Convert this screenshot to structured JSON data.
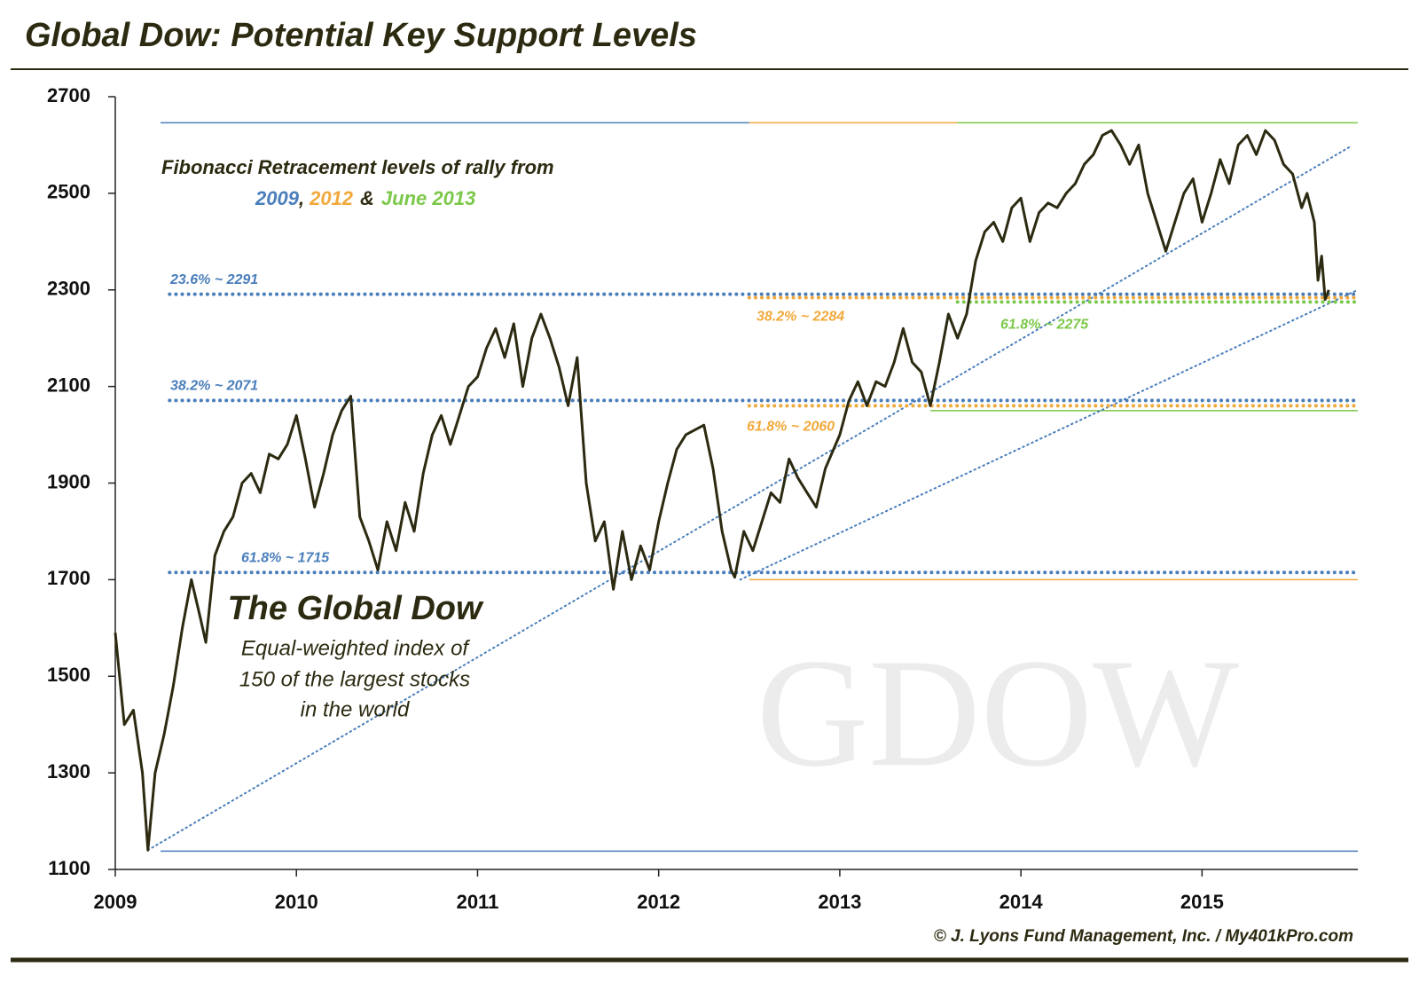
{
  "chart_data": {
    "type": "line",
    "title": "Global Dow: Potential Key Support Levels",
    "color": "#2c2a10",
    "xlim": [
      2009,
      2015.86
    ],
    "ylim": [
      1100,
      2700
    ],
    "xticks": [
      2009,
      2010,
      2011,
      2012,
      2013,
      2014,
      2015
    ],
    "yticks": [
      1100,
      1300,
      1500,
      1700,
      1900,
      2100,
      2300,
      2500,
      2700
    ],
    "x": [
      2009.0,
      2009.05,
      2009.1,
      2009.15,
      2009.18,
      2009.22,
      2009.27,
      2009.32,
      2009.37,
      2009.42,
      2009.47,
      2009.5,
      2009.55,
      2009.6,
      2009.65,
      2009.7,
      2009.75,
      2009.8,
      2009.85,
      2009.9,
      2009.95,
      2010.0,
      2010.05,
      2010.1,
      2010.15,
      2010.2,
      2010.25,
      2010.3,
      2010.35,
      2010.4,
      2010.45,
      2010.5,
      2010.55,
      2010.6,
      2010.65,
      2010.7,
      2010.75,
      2010.8,
      2010.85,
      2010.9,
      2010.95,
      2011.0,
      2011.05,
      2011.1,
      2011.15,
      2011.2,
      2011.25,
      2011.3,
      2011.35,
      2011.4,
      2011.45,
      2011.5,
      2011.55,
      2011.6,
      2011.65,
      2011.7,
      2011.75,
      2011.8,
      2011.85,
      2011.9,
      2011.95,
      2012.0,
      2012.05,
      2012.1,
      2012.15,
      2012.2,
      2012.25,
      2012.3,
      2012.35,
      2012.4,
      2012.42,
      2012.47,
      2012.52,
      2012.57,
      2012.62,
      2012.67,
      2012.72,
      2012.77,
      2012.82,
      2012.87,
      2012.92,
      2013.0,
      2013.05,
      2013.1,
      2013.15,
      2013.2,
      2013.25,
      2013.3,
      2013.35,
      2013.4,
      2013.45,
      2013.5,
      2013.55,
      2013.6,
      2013.65,
      2013.7,
      2013.75,
      2013.8,
      2013.85,
      2013.9,
      2013.95,
      2014.0,
      2014.05,
      2014.1,
      2014.15,
      2014.2,
      2014.25,
      2014.3,
      2014.35,
      2014.4,
      2014.45,
      2014.5,
      2014.55,
      2014.6,
      2014.65,
      2014.7,
      2014.75,
      2014.8,
      2014.85,
      2014.9,
      2014.95,
      2015.0,
      2015.05,
      2015.1,
      2015.15,
      2015.2,
      2015.25,
      2015.3,
      2015.35,
      2015.4,
      2015.45,
      2015.5,
      2015.55,
      2015.58,
      2015.62,
      2015.64,
      2015.66,
      2015.68,
      2015.7
    ],
    "values": [
      1590,
      1400,
      1430,
      1300,
      1140,
      1300,
      1380,
      1480,
      1600,
      1700,
      1620,
      1570,
      1750,
      1800,
      1830,
      1900,
      1920,
      1880,
      1960,
      1950,
      1980,
      2040,
      1950,
      1850,
      1920,
      2000,
      2050,
      2080,
      1830,
      1780,
      1720,
      1820,
      1760,
      1860,
      1800,
      1920,
      2000,
      2040,
      1980,
      2040,
      2100,
      2120,
      2180,
      2220,
      2160,
      2230,
      2100,
      2200,
      2250,
      2200,
      2140,
      2060,
      2160,
      1900,
      1780,
      1820,
      1680,
      1800,
      1700,
      1770,
      1720,
      1820,
      1900,
      1970,
      2000,
      2010,
      2020,
      1930,
      1800,
      1720,
      1705,
      1800,
      1760,
      1820,
      1880,
      1860,
      1950,
      1910,
      1880,
      1850,
      1930,
      2000,
      2070,
      2110,
      2060,
      2110,
      2100,
      2150,
      2220,
      2150,
      2130,
      2060,
      2150,
      2250,
      2200,
      2250,
      2360,
      2420,
      2440,
      2400,
      2470,
      2490,
      2400,
      2460,
      2480,
      2470,
      2500,
      2520,
      2560,
      2580,
      2620,
      2630,
      2600,
      2560,
      2600,
      2500,
      2440,
      2380,
      2440,
      2500,
      2530,
      2440,
      2500,
      2570,
      2520,
      2600,
      2620,
      2580,
      2630,
      2610,
      2560,
      2540,
      2470,
      2500,
      2440,
      2320,
      2370,
      2280,
      2300
    ],
    "levels": [
      {
        "label": "23.6% ~ 2291",
        "value": 2291,
        "color": "#4a7ebb",
        "x_start": 2009.3
      },
      {
        "label": "38.2% ~ 2071",
        "value": 2071,
        "color": "#4a7ebb",
        "x_start": 2009.3
      },
      {
        "label": "61.8% ~ 1715",
        "value": 1715,
        "color": "#4a7ebb",
        "x_start": 2009.3
      },
      {
        "label": "38.2% ~ 2284",
        "value": 2284,
        "color": "#f2a93b",
        "x_start": 2012.5
      },
      {
        "label": "61.8% ~ 2060",
        "value": 2060,
        "color": "#f2a93b",
        "x_start": 2012.5
      },
      {
        "label": "61.8% ~ 2275",
        "value": 2275,
        "color": "#7cc84a",
        "x_start": 2013.65
      }
    ],
    "reference_lines": [
      {
        "value": 2646,
        "x_start": 2009.25,
        "x_end": 2012.5,
        "color": "#4a7ebb"
      },
      {
        "value": 2646,
        "x_start": 2012.5,
        "x_end": 2013.65,
        "color": "#f2a93b"
      },
      {
        "value": 2646,
        "x_start": 2013.65,
        "x_end": 2015.86,
        "color": "#7cc84a"
      },
      {
        "value": 1138,
        "x_start": 2009.25,
        "x_end": 2015.86,
        "color": "#4a7ebb"
      },
      {
        "value": 1700,
        "x_start": 2012.5,
        "x_end": 2015.86,
        "color": "#f2a93b"
      },
      {
        "value": 2050,
        "x_start": 2013.5,
        "x_end": 2015.86,
        "color": "#7cc84a"
      }
    ],
    "trendlines": [
      {
        "x": [
          2009.18,
          2015.82
        ],
        "y": [
          1140,
          2597
        ],
        "color": "#4a7ebb"
      },
      {
        "x": [
          2012.45,
          2015.86
        ],
        "y": [
          1700,
          2300
        ],
        "color": "#4a7ebb"
      }
    ],
    "annotation_heading": "Fibonacci Retracement  levels of rally from",
    "annotation_years": [
      {
        "text": "2009",
        "color": "#4a7ebb"
      },
      {
        "text": ",",
        "color": "#2c2a10"
      },
      {
        "text": "2012",
        "color": "#f2a93b"
      },
      {
        "text": "&",
        "color": "#2c2a10"
      },
      {
        "text": "June 2013",
        "color": "#7cc84a"
      }
    ],
    "index_name": "The Global Dow",
    "index_description": [
      "Equal-weighted index of",
      "150 of the largest stocks",
      "in the world"
    ],
    "watermark": "GDOW",
    "credit": "© J. Lyons Fund Management, Inc. / My401kPro.com"
  }
}
